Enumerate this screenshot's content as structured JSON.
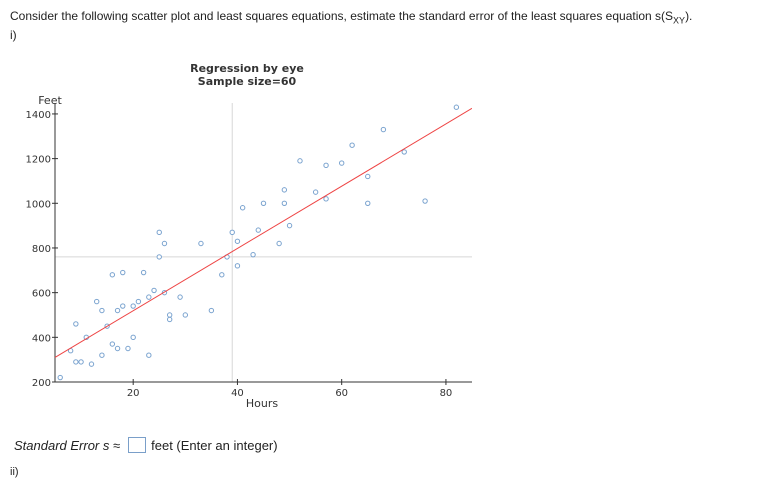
{
  "question": {
    "text_before": "Consider the following scatter plot and least squares equations, estimate the standard error of the  least squares equation s(S",
    "subscript": "XY",
    "text_after": ").",
    "part_label": "i)",
    "next_part_label": "ii)"
  },
  "answer": {
    "label": "Standard Error s ≈",
    "unit_hint": "feet (Enter an integer)",
    "value": ""
  },
  "colors": {
    "point_stroke": "#7aa3cf",
    "regression_line": "#ee4444",
    "crosshair": "#d8d8d8",
    "axis": "#333333"
  },
  "chart_data": {
    "type": "scatter",
    "title": "Regression by eye",
    "subtitle": "Sample size=60",
    "xlabel": "Hours",
    "ylabel": "Feet",
    "xlim": [
      5,
      85
    ],
    "ylim": [
      200,
      1440
    ],
    "x_ticks": [
      20,
      40,
      60,
      80
    ],
    "y_ticks": [
      200,
      400,
      600,
      800,
      1000,
      1200,
      1400
    ],
    "mean_line_x": 39,
    "mean_line_y": 760,
    "regression_line": [
      [
        5,
        310
      ],
      [
        85,
        1425
      ]
    ],
    "points": [
      [
        6,
        220
      ],
      [
        8,
        340
      ],
      [
        9,
        290
      ],
      [
        9,
        460
      ],
      [
        10,
        290
      ],
      [
        11,
        400
      ],
      [
        12,
        280
      ],
      [
        13,
        560
      ],
      [
        14,
        320
      ],
      [
        14,
        520
      ],
      [
        15,
        450
      ],
      [
        16,
        370
      ],
      [
        16,
        680
      ],
      [
        17,
        350
      ],
      [
        17,
        520
      ],
      [
        18,
        540
      ],
      [
        18,
        690
      ],
      [
        19,
        350
      ],
      [
        20,
        400
      ],
      [
        20,
        540
      ],
      [
        21,
        560
      ],
      [
        22,
        690
      ],
      [
        23,
        320
      ],
      [
        23,
        580
      ],
      [
        24,
        610
      ],
      [
        25,
        870
      ],
      [
        25,
        760
      ],
      [
        26,
        820
      ],
      [
        26,
        600
      ],
      [
        27,
        480
      ],
      [
        27,
        500
      ],
      [
        29,
        580
      ],
      [
        30,
        500
      ],
      [
        33,
        820
      ],
      [
        35,
        520
      ],
      [
        37,
        680
      ],
      [
        38,
        760
      ],
      [
        39,
        870
      ],
      [
        40,
        720
      ],
      [
        40,
        830
      ],
      [
        41,
        980
      ],
      [
        43,
        770
      ],
      [
        44,
        880
      ],
      [
        45,
        1000
      ],
      [
        48,
        820
      ],
      [
        49,
        1060
      ],
      [
        49,
        1000
      ],
      [
        50,
        900
      ],
      [
        52,
        1190
      ],
      [
        55,
        1050
      ],
      [
        57,
        1170
      ],
      [
        57,
        1020
      ],
      [
        60,
        1180
      ],
      [
        62,
        1260
      ],
      [
        65,
        1120
      ],
      [
        65,
        1000
      ],
      [
        68,
        1330
      ],
      [
        72,
        1230
      ],
      [
        76,
        1010
      ],
      [
        82,
        1430
      ]
    ]
  }
}
